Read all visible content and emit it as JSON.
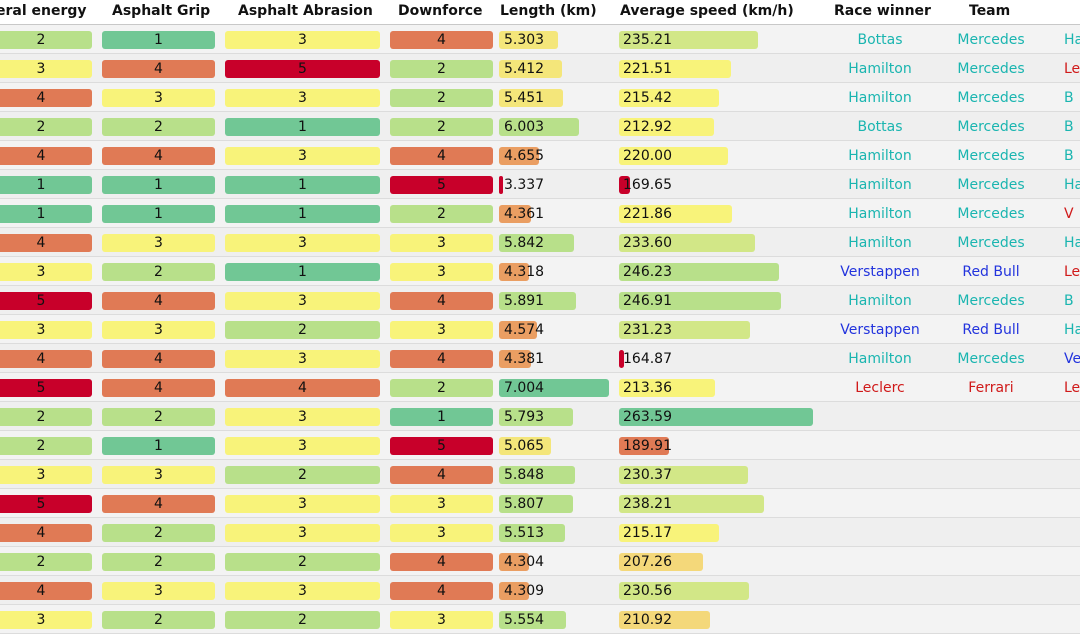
{
  "colors": {
    "level": {
      "1": "#71c795",
      "2": "#b8e08a",
      "3": "#f8f37a",
      "4": "#e07a55",
      "5": "#c8002a"
    },
    "mercedes": "#1ab5b0",
    "redbull": "#2233dd",
    "ferrari": "#d01a1a"
  },
  "headers": {
    "lateral_energy": "eral energy",
    "asphalt_grip": "Asphalt Grip",
    "asphalt_abrasion": "Asphalt Abrasion",
    "downforce": "Downforce",
    "length": "Length (km)",
    "avg_speed": "Average speed (km/h)",
    "race_winner": "Race winner",
    "team": "Team"
  },
  "rows": [
    {
      "lat": "2",
      "grip": "1",
      "abr": "3",
      "down": "4",
      "length": "5.303",
      "speed": "235.21",
      "winner": "Bottas",
      "team": "Mercedes",
      "extra": "Ha"
    },
    {
      "lat": "3",
      "grip": "4",
      "abr": "5",
      "down": "2",
      "length": "5.412",
      "speed": "221.51",
      "winner": "Hamilton",
      "team": "Mercedes",
      "extra": "Le"
    },
    {
      "lat": "4",
      "grip": "3",
      "abr": "3",
      "down": "2",
      "length": "5.451",
      "speed": "215.42",
      "winner": "Hamilton",
      "team": "Mercedes",
      "extra": "B"
    },
    {
      "lat": "2",
      "grip": "2",
      "abr": "1",
      "down": "2",
      "length": "6.003",
      "speed": "212.92",
      "winner": "Bottas",
      "team": "Mercedes",
      "extra": "B"
    },
    {
      "lat": "4",
      "grip": "4",
      "abr": "3",
      "down": "4",
      "length": "4.655",
      "speed": "220.00",
      "winner": "Hamilton",
      "team": "Mercedes",
      "extra": "B"
    },
    {
      "lat": "1",
      "grip": "1",
      "abr": "1",
      "down": "5",
      "length": "3.337",
      "speed": "169.65",
      "winner": "Hamilton",
      "team": "Mercedes",
      "extra": "Ha"
    },
    {
      "lat": "1",
      "grip": "1",
      "abr": "1",
      "down": "2",
      "length": "4.361",
      "speed": "221.86",
      "winner": "Hamilton",
      "team": "Mercedes",
      "extra": "V"
    },
    {
      "lat": "4",
      "grip": "3",
      "abr": "3",
      "down": "3",
      "length": "5.842",
      "speed": "233.60",
      "winner": "Hamilton",
      "team": "Mercedes",
      "extra": "Ha"
    },
    {
      "lat": "3",
      "grip": "2",
      "abr": "1",
      "down": "3",
      "length": "4.318",
      "speed": "246.23",
      "winner": "Verstappen",
      "team": "Red Bull",
      "extra": "Le"
    },
    {
      "lat": "5",
      "grip": "4",
      "abr": "3",
      "down": "4",
      "length": "5.891",
      "speed": "246.91",
      "winner": "Hamilton",
      "team": "Mercedes",
      "extra": "B"
    },
    {
      "lat": "3",
      "grip": "3",
      "abr": "2",
      "down": "3",
      "length": "4.574",
      "speed": "231.23",
      "winner": "Verstappen",
      "team": "Red Bull",
      "extra": "Ha"
    },
    {
      "lat": "4",
      "grip": "4",
      "abr": "3",
      "down": "4",
      "length": "4.381",
      "speed": "164.87",
      "winner": "Hamilton",
      "team": "Mercedes",
      "extra": "Ver"
    },
    {
      "lat": "5",
      "grip": "4",
      "abr": "4",
      "down": "2",
      "length": "7.004",
      "speed": "213.36",
      "winner": "Leclerc",
      "team": "Ferrari",
      "extra": "Le"
    },
    {
      "lat": "2",
      "grip": "2",
      "abr": "3",
      "down": "1",
      "length": "5.793",
      "speed": "263.59",
      "winner": "",
      "team": "",
      "extra": ""
    },
    {
      "lat": "2",
      "grip": "1",
      "abr": "3",
      "down": "5",
      "length": "5.065",
      "speed": "189.91",
      "winner": "",
      "team": "",
      "extra": ""
    },
    {
      "lat": "3",
      "grip": "3",
      "abr": "2",
      "down": "4",
      "length": "5.848",
      "speed": "230.37",
      "winner": "",
      "team": "",
      "extra": ""
    },
    {
      "lat": "5",
      "grip": "4",
      "abr": "3",
      "down": "3",
      "length": "5.807",
      "speed": "238.21",
      "winner": "",
      "team": "",
      "extra": ""
    },
    {
      "lat": "4",
      "grip": "2",
      "abr": "3",
      "down": "3",
      "length": "5.513",
      "speed": "215.17",
      "winner": "",
      "team": "",
      "extra": ""
    },
    {
      "lat": "2",
      "grip": "2",
      "abr": "2",
      "down": "4",
      "length": "4.304",
      "speed": "207.26",
      "winner": "",
      "team": "",
      "extra": ""
    },
    {
      "lat": "4",
      "grip": "3",
      "abr": "3",
      "down": "4",
      "length": "4.309",
      "speed": "230.56",
      "winner": "",
      "team": "",
      "extra": ""
    },
    {
      "lat": "3",
      "grip": "2",
      "abr": "2",
      "down": "3",
      "length": "5.554",
      "speed": "210.92",
      "winner": "",
      "team": "",
      "extra": ""
    }
  ]
}
